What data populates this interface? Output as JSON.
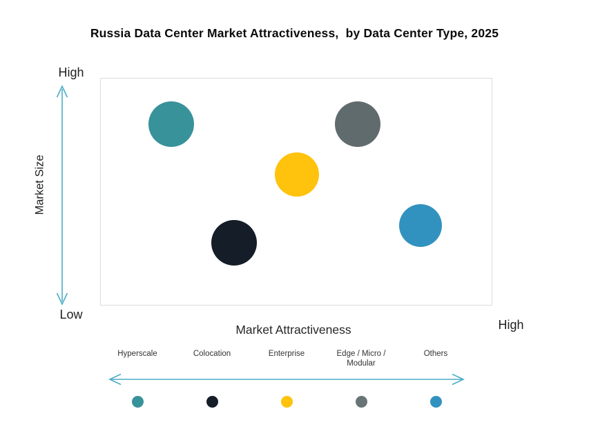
{
  "title": "Russia Data Center Market Attractiveness,  by Data Center Type, 2025",
  "axes": {
    "y_label": "Market Size",
    "y_high": "High",
    "y_low": "Low",
    "x_label": "Market Attractiveness",
    "x_high": "High"
  },
  "colors": {
    "arrow": "#4BACC6",
    "plot_border": "#DCDCDC",
    "title_text": "#0B0B0B",
    "axis_text": "#1F1F1F",
    "legend_text": "#333333"
  },
  "chart_data": {
    "type": "scatter",
    "title": "Russia Data Center Market Attractiveness, by Data Center Type, 2025",
    "xlabel": "Market Attractiveness",
    "ylabel": "Market Size",
    "x_axis": {
      "min_label": "Low",
      "max_label": "High",
      "numeric_ticks": false
    },
    "y_axis": {
      "min_label": "Low",
      "max_label": "High",
      "numeric_ticks": false
    },
    "value_note": "positions estimated on 0-1 relative scale from plot area",
    "points": [
      {
        "label": "Hyperscale",
        "color": "#38929A",
        "market_attractiveness": 0.18,
        "market_size": 0.8,
        "r": 33
      },
      {
        "label": "Colocation",
        "color": "#151D29",
        "market_attractiveness": 0.34,
        "market_size": 0.28,
        "r": 33
      },
      {
        "label": "Enterprise",
        "color": "#FFC20D",
        "market_attractiveness": 0.5,
        "market_size": 0.58,
        "r": 32
      },
      {
        "label": "Edge / Micro / Modular",
        "color": "#5F6B6D",
        "market_attractiveness": 0.655,
        "market_size": 0.8,
        "r": 33
      },
      {
        "label": "Others",
        "color": "#3292BF",
        "market_attractiveness": 0.815,
        "market_size": 0.355,
        "r": 31
      }
    ]
  },
  "legend": {
    "items": [
      {
        "label": "Hyperscale",
        "color": "#38929A"
      },
      {
        "label": "Colocation",
        "color": "#151D29"
      },
      {
        "label": "Enterprise",
        "color": "#FFC20D"
      },
      {
        "label": "Edge / Micro / Modular",
        "color": "#687476"
      },
      {
        "label": "Others",
        "color": "#3292BF"
      }
    ]
  }
}
